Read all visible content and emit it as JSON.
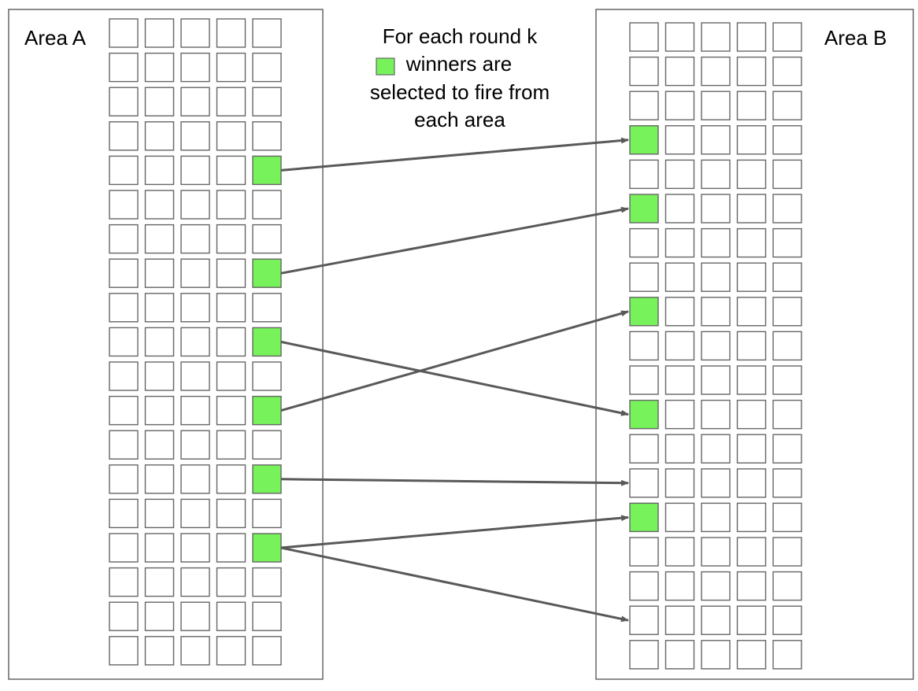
{
  "colors": {
    "winner_fill": "#77f25a",
    "cell_stroke": "#666666",
    "area_stroke": "#666666",
    "arrow": "#595959",
    "empty_fill": "#ffffff"
  },
  "area_a": {
    "label": "Area A",
    "rows": 19,
    "cols": 5,
    "winner_cells": [
      [
        4,
        4
      ],
      [
        7,
        4
      ],
      [
        9,
        4
      ],
      [
        11,
        4
      ],
      [
        13,
        4
      ],
      [
        15,
        4
      ]
    ]
  },
  "area_b": {
    "label": "Area B",
    "rows": 19,
    "cols": 5,
    "winner_cells": [
      [
        3,
        0
      ],
      [
        5,
        0
      ],
      [
        8,
        0
      ],
      [
        11,
        0
      ],
      [
        14,
        0
      ]
    ]
  },
  "caption": {
    "line1": "For each round k",
    "line2": "winners are",
    "line3": "selected to fire from",
    "line4": "each area",
    "legend_swatch": "winner-swatch"
  },
  "connections": [
    {
      "from_row": 4,
      "to_row": 3
    },
    {
      "from_row": 7,
      "to_row": 5
    },
    {
      "from_row": 9,
      "to_row": 11
    },
    {
      "from_row": 11,
      "to_row": 8
    },
    {
      "from_row": 13,
      "to_row": 13
    },
    {
      "from_row": 15,
      "to_row": 14
    },
    {
      "from_row": 15,
      "to_row": 17
    }
  ]
}
